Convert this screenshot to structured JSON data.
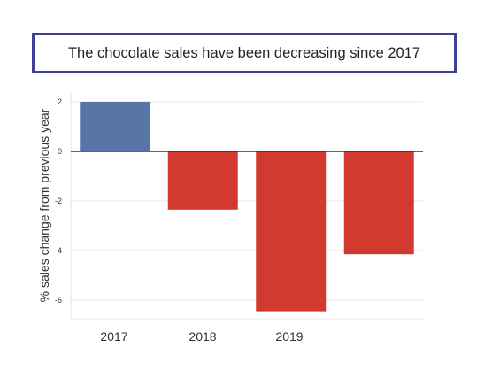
{
  "title": "The chocolate sales have been decreasing since 2017",
  "chart_data": {
    "type": "bar",
    "title": "The chocolate sales have been decreasing since 2017",
    "xlabel": "",
    "ylabel": "% sales change from previous year",
    "categories": [
      "2017",
      "2018",
      "2019",
      ""
    ],
    "values": [
      2.0,
      -2.35,
      -6.45,
      -4.15
    ],
    "ylim": [
      -6.9,
      2.5
    ],
    "yticks": [
      2,
      0,
      -2,
      -4,
      -6
    ],
    "grid": "horizontal",
    "legend": "none",
    "bar_colors": [
      "#5975a8",
      "#d23a30",
      "#d23a30",
      "#d23a30"
    ],
    "zero_line_color": "#333333"
  }
}
